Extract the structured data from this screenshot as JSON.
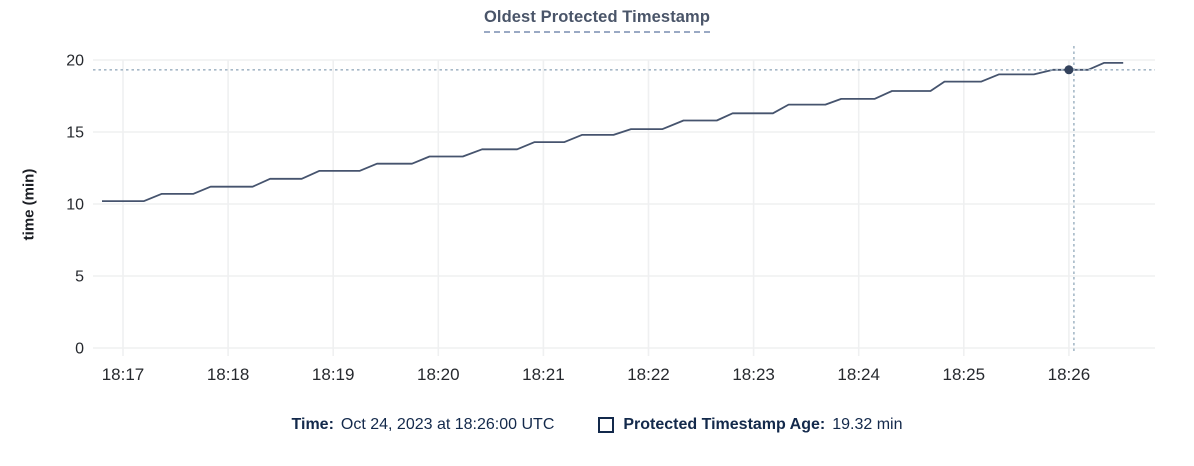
{
  "header": {
    "title": "Oldest Protected Timestamp"
  },
  "chart_data": {
    "type": "line",
    "title": "Oldest Protected Timestamp",
    "xlabel": "",
    "ylabel": "time (min)",
    "ylim": [
      0,
      20
    ],
    "y_ticks": [
      0,
      5,
      10,
      15,
      20
    ],
    "x_ticks": [
      {
        "minute": 0,
        "label": "18:17"
      },
      {
        "minute": 1,
        "label": "18:18"
      },
      {
        "minute": 2,
        "label": "18:19"
      },
      {
        "minute": 3,
        "label": "18:20"
      },
      {
        "minute": 4,
        "label": "18:21"
      },
      {
        "minute": 5,
        "label": "18:22"
      },
      {
        "minute": 6,
        "label": "18:23"
      },
      {
        "minute": 7,
        "label": "18:24"
      },
      {
        "minute": 8,
        "label": "18:25"
      },
      {
        "minute": 9,
        "label": "18:26"
      }
    ],
    "grid": true,
    "legend_position": "bottom",
    "series": [
      {
        "name": "Protected Timestamp Age",
        "units": "min",
        "points_t_seconds_vs_min": [
          [
            -12,
            10.2
          ],
          [
            12,
            10.2
          ],
          [
            22,
            10.7
          ],
          [
            40,
            10.7
          ],
          [
            50,
            11.2
          ],
          [
            74,
            11.2
          ],
          [
            84,
            11.75
          ],
          [
            102,
            11.75
          ],
          [
            112,
            12.3
          ],
          [
            135,
            12.3
          ],
          [
            145,
            12.8
          ],
          [
            165,
            12.8
          ],
          [
            175,
            13.3
          ],
          [
            194,
            13.3
          ],
          [
            205,
            13.8
          ],
          [
            225,
            13.8
          ],
          [
            235,
            14.3
          ],
          [
            252,
            14.3
          ],
          [
            262,
            14.8
          ],
          [
            280,
            14.8
          ],
          [
            290,
            15.2
          ],
          [
            308,
            15.2
          ],
          [
            320,
            15.8
          ],
          [
            339,
            15.8
          ],
          [
            348,
            16.3
          ],
          [
            371,
            16.3
          ],
          [
            380,
            16.9
          ],
          [
            401,
            16.9
          ],
          [
            410,
            17.3
          ],
          [
            429,
            17.3
          ],
          [
            439,
            17.85
          ],
          [
            461,
            17.85
          ],
          [
            469,
            18.5
          ],
          [
            490,
            18.5
          ],
          [
            500,
            19.0
          ],
          [
            520,
            19.0
          ],
          [
            531,
            19.32
          ],
          [
            551,
            19.32
          ],
          [
            560,
            19.8
          ],
          [
            571,
            19.8
          ]
        ]
      }
    ],
    "hover": {
      "time_label": "18:26:00",
      "t_seconds": 540,
      "value_min": 19.32
    }
  },
  "footer": {
    "time_label": "Time:",
    "time_value": "Oct 24, 2023 at 18:26:00 UTC",
    "legend_label": "Protected Timestamp Age:",
    "legend_value": "19.32 min"
  },
  "colors": {
    "title": "#4a5569",
    "title_underline": "#9aa9c4",
    "footer_navy": "#13294b",
    "line": "#46546e",
    "dot": "#33425c",
    "crosshair": "#a6b8c7",
    "grid": "#eff0f1",
    "tick_text": "#26292e",
    "background": "#ffffff"
  }
}
